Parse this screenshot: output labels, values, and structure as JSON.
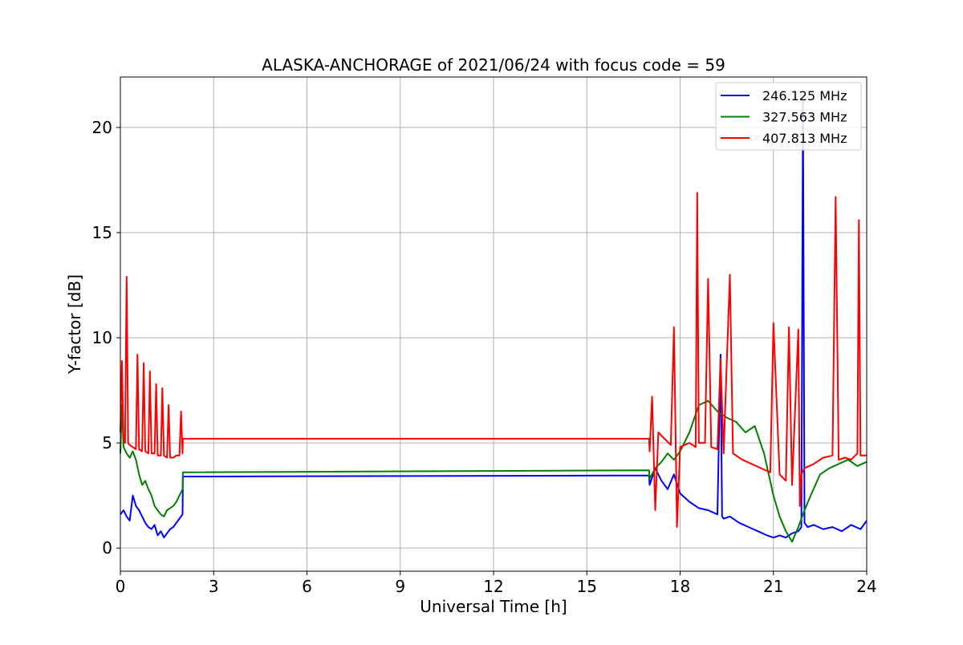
{
  "chart_data": {
    "type": "line",
    "title": "ALASKA-ANCHORAGE of 2021/06/24 with focus code = 59",
    "xlabel": "Universal Time [h]",
    "ylabel": "Y-factor [dB]",
    "xlim": [
      0,
      24
    ],
    "ylim": [
      -1.1,
      22.4
    ],
    "xticks": [
      0,
      3,
      6,
      9,
      12,
      15,
      18,
      21,
      24
    ],
    "yticks": [
      0,
      5,
      10,
      15,
      20
    ],
    "grid": true,
    "legend_position": "top-right",
    "series": [
      {
        "name": "246.125 MHz",
        "color": "#0000ff",
        "x": [
          0,
          0.1,
          0.2,
          0.3,
          0.4,
          0.5,
          0.6,
          0.7,
          0.8,
          0.9,
          1.0,
          1.1,
          1.2,
          1.3,
          1.4,
          1.5,
          1.6,
          1.7,
          1.8,
          1.9,
          2.0,
          2.01,
          17.0,
          17.02,
          17.2,
          17.4,
          17.6,
          17.8,
          18.0,
          18.3,
          18.6,
          18.9,
          19.2,
          19.3,
          19.35,
          19.4,
          19.6,
          19.9,
          20.2,
          20.5,
          20.8,
          21.0,
          21.2,
          21.4,
          21.6,
          21.8,
          21.9,
          21.95,
          22.0,
          22.1,
          22.3,
          22.6,
          22.9,
          23.2,
          23.5,
          23.8,
          24.0
        ],
        "y": [
          1.6,
          1.8,
          1.5,
          1.3,
          2.5,
          2.0,
          1.8,
          1.5,
          1.2,
          1.0,
          0.9,
          1.1,
          0.6,
          0.8,
          0.5,
          0.7,
          0.9,
          1.0,
          1.2,
          1.4,
          1.6,
          3.4,
          3.45,
          3.0,
          3.8,
          3.2,
          2.8,
          3.5,
          2.6,
          2.2,
          1.9,
          1.8,
          1.6,
          9.2,
          1.5,
          1.4,
          1.5,
          1.2,
          1.0,
          0.8,
          0.6,
          0.5,
          0.6,
          0.5,
          0.7,
          0.8,
          1.0,
          21.3,
          1.2,
          1.0,
          1.1,
          0.9,
          1.0,
          0.8,
          1.1,
          0.9,
          1.3
        ]
      },
      {
        "name": "327.563 MHz",
        "color": "#008000",
        "x": [
          0,
          0.05,
          0.1,
          0.2,
          0.3,
          0.4,
          0.5,
          0.6,
          0.7,
          0.8,
          0.9,
          1.0,
          1.1,
          1.2,
          1.3,
          1.4,
          1.5,
          1.6,
          1.7,
          1.8,
          1.9,
          2.0,
          2.01,
          17.0,
          17.02,
          17.2,
          17.4,
          17.6,
          17.8,
          18.0,
          18.3,
          18.6,
          18.9,
          19.2,
          19.5,
          19.8,
          20.1,
          20.4,
          20.7,
          21.0,
          21.2,
          21.4,
          21.6,
          21.8,
          22.0,
          22.2,
          22.5,
          22.8,
          23.1,
          23.4,
          23.7,
          24.0
        ],
        "y": [
          4.5,
          6.8,
          4.8,
          4.5,
          4.3,
          4.6,
          4.2,
          3.5,
          3.0,
          3.2,
          2.8,
          2.5,
          2.0,
          1.8,
          1.6,
          1.5,
          1.8,
          1.9,
          2.0,
          2.2,
          2.5,
          2.8,
          3.6,
          3.7,
          3.3,
          3.8,
          4.1,
          4.5,
          4.2,
          4.6,
          5.5,
          6.8,
          7.0,
          6.5,
          6.2,
          6.0,
          5.5,
          5.8,
          4.5,
          2.5,
          1.5,
          0.8,
          0.3,
          1.0,
          1.8,
          2.5,
          3.5,
          3.8,
          4.0,
          4.2,
          3.9,
          4.1
        ]
      },
      {
        "name": "407.813 MHz",
        "color": "#ff0000",
        "x": [
          0,
          0.05,
          0.1,
          0.15,
          0.2,
          0.25,
          0.3,
          0.4,
          0.5,
          0.55,
          0.6,
          0.7,
          0.75,
          0.8,
          0.9,
          0.95,
          1.0,
          1.1,
          1.15,
          1.2,
          1.3,
          1.35,
          1.4,
          1.5,
          1.55,
          1.6,
          1.7,
          1.8,
          1.9,
          1.95,
          2.0,
          2.01,
          17.0,
          17.02,
          17.1,
          17.2,
          17.3,
          17.5,
          17.7,
          17.8,
          17.9,
          18.0,
          18.3,
          18.5,
          18.55,
          18.6,
          18.8,
          18.9,
          19.0,
          19.2,
          19.3,
          19.4,
          19.6,
          19.7,
          19.8,
          20.0,
          20.3,
          20.6,
          20.9,
          21.0,
          21.2,
          21.4,
          21.5,
          21.6,
          21.8,
          21.85,
          21.9,
          22.0,
          22.3,
          22.6,
          22.9,
          23.0,
          23.1,
          23.3,
          23.5,
          23.7,
          23.75,
          23.8,
          24.0
        ],
        "y": [
          5.5,
          8.9,
          5.2,
          5.0,
          12.9,
          5.0,
          4.9,
          4.8,
          4.7,
          9.2,
          4.7,
          4.6,
          8.8,
          4.6,
          4.5,
          8.4,
          4.5,
          4.5,
          7.8,
          4.4,
          4.4,
          7.6,
          4.4,
          4.3,
          6.8,
          4.3,
          4.3,
          4.4,
          4.4,
          6.5,
          4.5,
          5.2,
          5.2,
          4.6,
          7.2,
          1.8,
          5.5,
          5.2,
          4.9,
          10.5,
          1.0,
          4.8,
          5.0,
          4.8,
          16.9,
          5.0,
          5.0,
          12.8,
          4.8,
          4.7,
          9.0,
          4.5,
          13.0,
          4.5,
          4.4,
          4.2,
          4.0,
          3.8,
          3.6,
          10.7,
          3.5,
          3.2,
          10.5,
          3.0,
          10.4,
          2.0,
          3.5,
          3.8,
          4.0,
          4.3,
          4.4,
          16.7,
          4.2,
          4.3,
          4.2,
          4.5,
          15.6,
          4.4,
          4.4
        ]
      }
    ]
  }
}
